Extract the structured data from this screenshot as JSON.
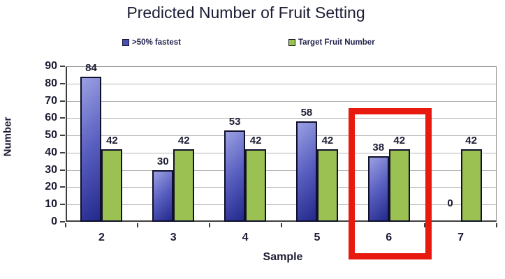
{
  "title": "Predicted Number of Fruit Setting",
  "legend": {
    "items": [
      {
        "label": ">50% fastest",
        "swatch_color": "#4a50b0",
        "swatch_border": "#14143c"
      },
      {
        "label": "Target Fruit Number",
        "swatch_color": "#9bc152",
        "swatch_border": "#161616"
      }
    ]
  },
  "chart_data": {
    "type": "bar",
    "title": "Predicted Number of Fruit Setting",
    "categories": [
      "2",
      "3",
      "4",
      "5",
      "6",
      "7"
    ],
    "series": [
      {
        "name": ">50% fastest",
        "values": [
          84,
          30,
          53,
          58,
          38,
          0
        ],
        "color": "#3c42a8",
        "style": "gradient-blue"
      },
      {
        "name": "Target Fruit Number",
        "values": [
          42,
          42,
          42,
          42,
          42,
          42
        ],
        "color": "#9bc152",
        "style": "solid-green"
      }
    ],
    "xlabel": "Sample",
    "ylabel": "Number",
    "ylim": [
      0,
      90
    ],
    "yticks": [
      0,
      10,
      20,
      30,
      40,
      50,
      60,
      70,
      80,
      90
    ],
    "grid": "horizontal",
    "gridline_color": "#b5b5b5",
    "legend_position": "top",
    "data_labels": true,
    "highlight": {
      "category": "6",
      "color": "#e8190f",
      "shape": "rectangle"
    }
  }
}
